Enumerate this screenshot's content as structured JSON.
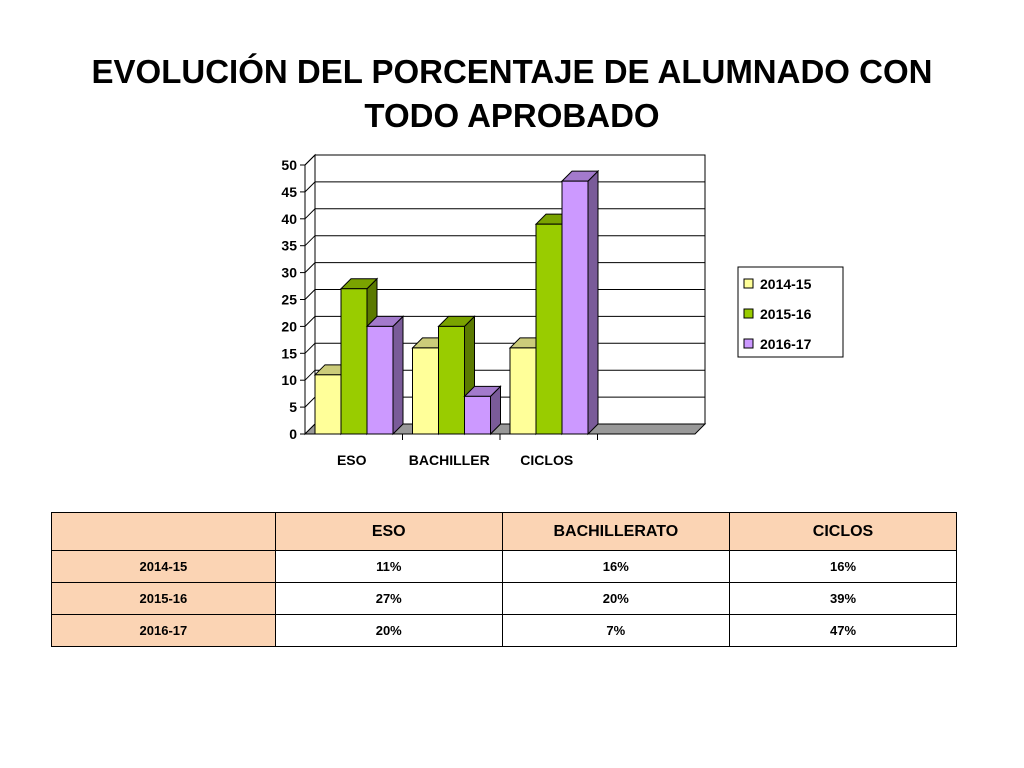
{
  "slide": {
    "title": "EVOLUCIÓN DEL PORCENTAJE DE ALUMNADO CON TODO APROBADO"
  },
  "colors": {
    "series_front": [
      "#ffff99",
      "#99cc00",
      "#cc99ff"
    ],
    "series_top": [
      "#cccc7a",
      "#7aa300",
      "#a37acc"
    ],
    "series_side": [
      "#999966",
      "#5b7a00",
      "#7a5b99"
    ],
    "table_header_bg": "#fbd4b4",
    "gridline": "#000000"
  },
  "chart_data": {
    "type": "bar",
    "title": "",
    "xlabel": "",
    "ylabel": "",
    "categories": [
      "ESO",
      "BACHILLER",
      "CICLOS"
    ],
    "series": [
      {
        "name": "2014-15",
        "values": [
          11,
          16,
          16
        ]
      },
      {
        "name": "2015-16",
        "values": [
          27,
          20,
          39
        ]
      },
      {
        "name": "2016-17",
        "values": [
          20,
          7,
          47
        ]
      }
    ],
    "ylim": [
      0,
      50
    ],
    "yticks": [
      "0",
      "5",
      "10",
      "15",
      "20",
      "25",
      "30",
      "35",
      "40",
      "45",
      "50"
    ],
    "grid": true,
    "legend_position": "right",
    "style": "3d-clustered"
  },
  "table": {
    "corner": "",
    "headers": [
      "ESO",
      "BACHILLERATO",
      "CICLOS"
    ],
    "rows": [
      {
        "label": "2014-15",
        "cells": [
          "11%",
          "16%",
          "16%"
        ]
      },
      {
        "label": "2015-16",
        "cells": [
          "27%",
          "20%",
          "39%"
        ]
      },
      {
        "label": "2016-17",
        "cells": [
          "20%",
          "7%",
          "47%"
        ]
      }
    ]
  }
}
